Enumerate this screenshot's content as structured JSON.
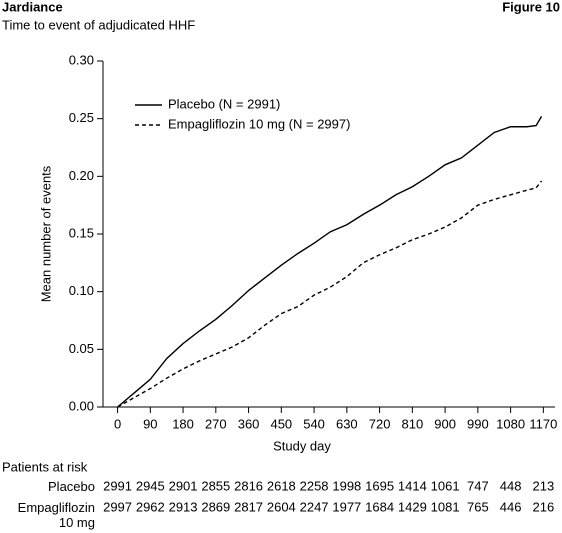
{
  "header": {
    "title": "Jardiance",
    "subtitle": "Time to event of adjudicated HHF",
    "figure": "Figure 10"
  },
  "chart_data": {
    "type": "line",
    "x_label": "Study day",
    "y_label": "Mean number of events",
    "xlim": [
      -40,
      1202
    ],
    "ylim": [
      0,
      0.3
    ],
    "xticks": [
      0,
      90,
      180,
      270,
      360,
      450,
      540,
      630,
      720,
      810,
      900,
      990,
      1080,
      1170
    ],
    "yticks": [
      {
        "value": 0,
        "label": "0.00"
      },
      {
        "value": 0.05,
        "label": "0.05"
      },
      {
        "value": 0.1,
        "label": "0.10"
      },
      {
        "value": 0.15,
        "label": "0.15"
      },
      {
        "value": 0.2,
        "label": "0.20"
      },
      {
        "value": 0.25,
        "label": "0.25"
      },
      {
        "value": 0.3,
        "label": "0.30"
      }
    ],
    "legend": "upper left",
    "x": [
      0,
      45,
      90,
      135,
      180,
      225,
      270,
      315,
      360,
      405,
      450,
      495,
      540,
      585,
      630,
      675,
      720,
      765,
      810,
      855,
      900,
      945,
      990,
      1035,
      1080,
      1125,
      1150,
      1165
    ],
    "series": [
      {
        "name": "Placebo (N = 2991)",
        "color": "#000000",
        "dash": "solid",
        "values": [
          0,
          0.012,
          0.024,
          0.042,
          0.055,
          0.066,
          0.076,
          0.088,
          0.101,
          0.112,
          0.123,
          0.133,
          0.142,
          0.152,
          0.158,
          0.167,
          0.175,
          0.184,
          0.191,
          0.2,
          0.21,
          0.216,
          0.227,
          0.238,
          0.243,
          0.243,
          0.244,
          0.252
        ]
      },
      {
        "name": "Empagliflozin 10 mg (N = 2997)",
        "color": "#000000",
        "dash": "dashed",
        "values": [
          0,
          0.008,
          0.016,
          0.025,
          0.033,
          0.04,
          0.046,
          0.052,
          0.06,
          0.071,
          0.081,
          0.087,
          0.097,
          0.104,
          0.113,
          0.125,
          0.132,
          0.138,
          0.145,
          0.15,
          0.156,
          0.164,
          0.175,
          0.18,
          0.184,
          0.188,
          0.19,
          0.196
        ]
      }
    ]
  },
  "patients_at_risk": {
    "title": "Patients at risk",
    "rows": [
      {
        "label": "Placebo",
        "values": [
          2991,
          2945,
          2901,
          2855,
          2816,
          2618,
          2258,
          1998,
          1695,
          1414,
          1061,
          747,
          448,
          213
        ]
      },
      {
        "label": "Empagliflozin 10 mg",
        "values": [
          2997,
          2962,
          2913,
          2869,
          2817,
          2604,
          2247,
          1977,
          1684,
          1429,
          1081,
          765,
          446,
          216
        ]
      }
    ]
  }
}
